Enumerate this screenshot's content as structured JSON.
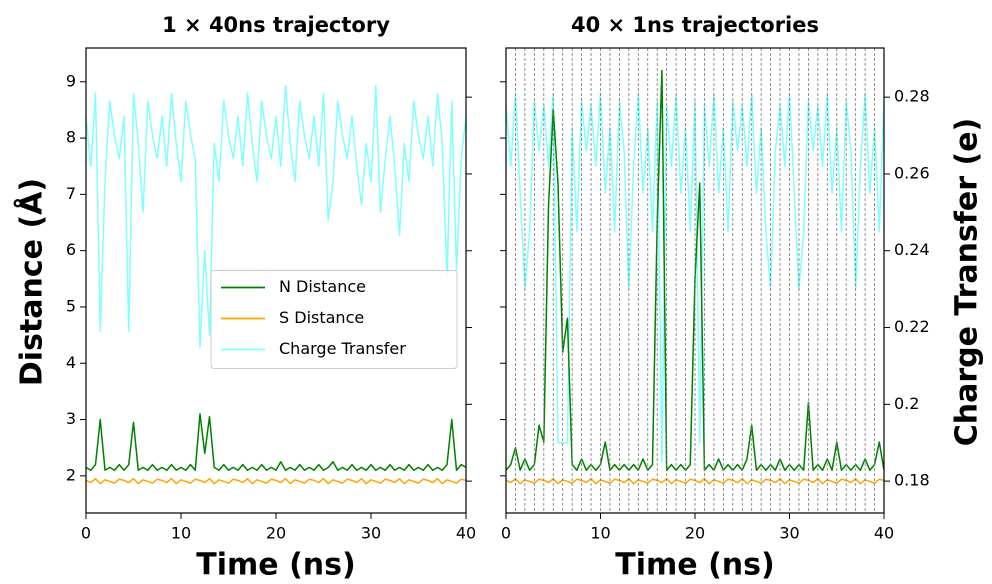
{
  "chart_data": [
    {
      "type": "line",
      "title": "1 × 40ns trajectory",
      "xlabel": "Time (ns)",
      "ylabel": "Distance (Å)",
      "xlim": [
        0,
        40
      ],
      "xticks": [
        0,
        10,
        20,
        30,
        40
      ],
      "ylim": [
        1.34,
        9.6
      ],
      "yticks": [
        2,
        3,
        4,
        5,
        6,
        7,
        8,
        9
      ],
      "y2lim": [
        0.1717,
        0.2928
      ],
      "legend": "center right",
      "x": [
        0,
        0.5,
        1,
        1.5,
        2,
        2.5,
        3,
        3.5,
        4,
        4.5,
        5,
        5.5,
        6,
        6.5,
        7,
        7.5,
        8,
        8.5,
        9,
        9.5,
        10,
        10.5,
        11,
        11.5,
        12,
        12.5,
        13,
        13.5,
        14,
        14.5,
        15,
        15.5,
        16,
        16.5,
        17,
        17.5,
        18,
        18.5,
        19,
        19.5,
        20,
        20.5,
        21,
        21.5,
        22,
        22.5,
        23,
        23.5,
        24,
        24.5,
        25,
        25.5,
        26,
        26.5,
        27,
        27.5,
        28,
        28.5,
        29,
        29.5,
        30,
        30.5,
        31,
        31.5,
        32,
        32.5,
        33,
        33.5,
        34,
        34.5,
        35,
        35.5,
        36,
        36.5,
        37,
        37.5,
        38,
        38.5,
        39,
        39.5,
        40
      ],
      "series": [
        {
          "name": "N Distance",
          "color": "#008000",
          "values": [
            2.15,
            2.1,
            2.2,
            3.0,
            2.1,
            2.15,
            2.1,
            2.2,
            2.1,
            2.2,
            2.95,
            2.1,
            2.15,
            2.1,
            2.2,
            2.1,
            2.15,
            2.1,
            2.2,
            2.1,
            2.15,
            2.1,
            2.2,
            2.1,
            3.1,
            2.4,
            3.05,
            2.15,
            2.1,
            2.2,
            2.1,
            2.15,
            2.1,
            2.2,
            2.1,
            2.15,
            2.1,
            2.2,
            2.1,
            2.15,
            2.1,
            2.25,
            2.1,
            2.15,
            2.1,
            2.2,
            2.1,
            2.15,
            2.1,
            2.2,
            2.1,
            2.15,
            2.25,
            2.1,
            2.15,
            2.1,
            2.2,
            2.1,
            2.15,
            2.1,
            2.2,
            2.1,
            2.15,
            2.1,
            2.2,
            2.1,
            2.15,
            2.1,
            2.2,
            2.1,
            2.15,
            2.1,
            2.2,
            2.1,
            2.15,
            2.1,
            2.2,
            3.0,
            2.1,
            2.2,
            2.15
          ]
        },
        {
          "name": "S Distance",
          "color": "#ffa500",
          "values": [
            1.92,
            1.88,
            1.95,
            1.86,
            1.93,
            1.9,
            1.87,
            1.94,
            1.92,
            1.88,
            1.95,
            1.86,
            1.93,
            1.9,
            1.87,
            1.94,
            1.92,
            1.88,
            1.95,
            1.86,
            1.93,
            1.9,
            1.87,
            1.94,
            1.92,
            1.88,
            1.95,
            1.86,
            1.93,
            1.9,
            1.87,
            1.94,
            1.92,
            1.88,
            1.95,
            1.86,
            1.93,
            1.9,
            1.87,
            1.94,
            1.92,
            1.88,
            1.95,
            1.86,
            1.93,
            1.9,
            1.87,
            1.94,
            1.92,
            1.88,
            1.95,
            1.86,
            1.93,
            1.9,
            1.87,
            1.94,
            1.92,
            1.88,
            1.95,
            1.86,
            1.93,
            1.9,
            1.87,
            1.94,
            1.92,
            1.88,
            1.95,
            1.86,
            1.93,
            1.9,
            1.87,
            1.94,
            1.92,
            1.88,
            1.95,
            1.86,
            1.93,
            1.9,
            1.87,
            1.94,
            1.92
          ]
        },
        {
          "name": "Charge Transfer",
          "color": "#80ffff",
          "axis": "y2",
          "values": [
            0.275,
            0.262,
            0.281,
            0.219,
            0.258,
            0.279,
            0.27,
            0.264,
            0.275,
            0.219,
            0.281,
            0.268,
            0.25,
            0.279,
            0.27,
            0.264,
            0.275,
            0.262,
            0.281,
            0.268,
            0.258,
            0.279,
            0.27,
            0.264,
            0.215,
            0.24,
            0.218,
            0.268,
            0.258,
            0.279,
            0.27,
            0.264,
            0.275,
            0.262,
            0.281,
            0.268,
            0.258,
            0.279,
            0.27,
            0.264,
            0.275,
            0.262,
            0.283,
            0.268,
            0.258,
            0.279,
            0.27,
            0.264,
            0.275,
            0.262,
            0.281,
            0.248,
            0.258,
            0.279,
            0.27,
            0.264,
            0.275,
            0.262,
            0.252,
            0.268,
            0.258,
            0.283,
            0.25,
            0.264,
            0.275,
            0.262,
            0.244,
            0.268,
            0.258,
            0.279,
            0.27,
            0.264,
            0.275,
            0.262,
            0.281,
            0.268,
            0.233,
            0.279,
            0.235,
            0.264,
            0.275
          ]
        }
      ]
    },
    {
      "type": "line",
      "title": "40 × 1ns trajectories",
      "xlabel": "Time (ns)",
      "y2label": "Charge Transfer (e)",
      "xlim": [
        0,
        40
      ],
      "xticks": [
        0,
        10,
        20,
        30,
        40
      ],
      "ylim": [
        1.34,
        9.6
      ],
      "y2lim": [
        0.1717,
        0.2928
      ],
      "y2ticks": [
        0.18,
        0.2,
        0.22,
        0.24,
        0.26,
        0.28
      ],
      "vlines": [
        1,
        2,
        3,
        4,
        5,
        6,
        7,
        8,
        9,
        10,
        11,
        12,
        13,
        14,
        15,
        16,
        17,
        18,
        19,
        20,
        21,
        22,
        23,
        24,
        25,
        26,
        27,
        28,
        29,
        30,
        31,
        32,
        33,
        34,
        35,
        36,
        37,
        38,
        39
      ],
      "x": [
        0,
        0.5,
        1,
        1.5,
        2,
        2.5,
        3,
        3.5,
        4,
        4.5,
        5,
        5.5,
        6,
        6.5,
        7,
        7.5,
        8,
        8.5,
        9,
        9.5,
        10,
        10.5,
        11,
        11.5,
        12,
        12.5,
        13,
        13.5,
        14,
        14.5,
        15,
        15.5,
        16,
        16.5,
        17,
        17.5,
        18,
        18.5,
        19,
        19.5,
        20,
        20.5,
        21,
        21.5,
        22,
        22.5,
        23,
        23.5,
        24,
        24.5,
        25,
        25.5,
        26,
        26.5,
        27,
        27.5,
        28,
        28.5,
        29,
        29.5,
        30,
        30.5,
        31,
        31.5,
        32,
        32.5,
        33,
        33.5,
        34,
        34.5,
        35,
        35.5,
        36,
        36.5,
        37,
        37.5,
        38,
        38.5,
        39,
        39.5,
        40
      ],
      "series": [
        {
          "name": "N Distance",
          "color": "#008000",
          "values": [
            2.1,
            2.2,
            2.5,
            2.1,
            2.3,
            2.1,
            2.2,
            2.9,
            2.6,
            6.8,
            8.5,
            7.2,
            4.2,
            4.8,
            2.2,
            2.1,
            2.3,
            2.1,
            2.2,
            2.1,
            2.2,
            2.6,
            2.1,
            2.2,
            2.1,
            2.2,
            2.1,
            2.2,
            2.1,
            2.3,
            2.1,
            2.2,
            6.5,
            9.2,
            2.1,
            2.2,
            2.1,
            2.2,
            2.1,
            2.2,
            5.5,
            7.2,
            2.1,
            2.2,
            2.1,
            2.3,
            2.1,
            2.2,
            2.1,
            2.2,
            2.1,
            2.3,
            2.9,
            2.1,
            2.2,
            2.1,
            2.2,
            2.1,
            2.3,
            2.1,
            2.2,
            2.1,
            2.2,
            2.1,
            3.3,
            2.1,
            2.2,
            2.1,
            2.3,
            2.1,
            2.6,
            2.1,
            2.2,
            2.1,
            2.2,
            2.1,
            2.3,
            2.1,
            2.2,
            2.6,
            2.1
          ]
        },
        {
          "name": "S Distance",
          "color": "#ffa500",
          "values": [
            1.92,
            1.88,
            1.95,
            1.86,
            1.93,
            1.9,
            1.87,
            1.94,
            1.92,
            1.88,
            1.95,
            1.86,
            1.93,
            1.9,
            1.87,
            1.94,
            1.92,
            1.88,
            1.95,
            1.86,
            1.93,
            1.9,
            1.87,
            1.94,
            1.92,
            1.88,
            1.95,
            1.86,
            1.93,
            1.9,
            1.87,
            1.94,
            1.92,
            1.88,
            1.95,
            1.86,
            1.93,
            1.9,
            1.87,
            1.94,
            1.92,
            1.88,
            1.95,
            1.86,
            1.93,
            1.9,
            1.87,
            1.94,
            1.92,
            1.88,
            1.95,
            1.86,
            1.93,
            1.9,
            1.87,
            1.94,
            1.92,
            1.88,
            1.95,
            1.86,
            1.93,
            1.9,
            1.87,
            1.94,
            1.92,
            1.88,
            1.95,
            1.86,
            1.93,
            1.9,
            1.87,
            1.94,
            1.92,
            1.88,
            1.95,
            1.86,
            1.93,
            1.9,
            1.87,
            1.94,
            1.92
          ]
        },
        {
          "name": "Charge Transfer",
          "color": "#80ffff",
          "axis": "y2",
          "values": [
            0.278,
            0.262,
            0.281,
            0.255,
            0.23,
            0.245,
            0.279,
            0.266,
            0.278,
            0.262,
            0.281,
            0.19,
            0.19,
            0.19,
            0.272,
            0.245,
            0.279,
            0.266,
            0.278,
            0.262,
            0.281,
            0.255,
            0.272,
            0.245,
            0.279,
            0.266,
            0.23,
            0.262,
            0.281,
            0.255,
            0.272,
            0.245,
            0.279,
            0.185,
            0.278,
            0.262,
            0.281,
            0.255,
            0.272,
            0.245,
            0.279,
            0.19,
            0.278,
            0.262,
            0.281,
            0.255,
            0.272,
            0.245,
            0.279,
            0.266,
            0.278,
            0.262,
            0.281,
            0.255,
            0.272,
            0.245,
            0.23,
            0.266,
            0.278,
            0.262,
            0.281,
            0.255,
            0.23,
            0.245,
            0.279,
            0.266,
            0.278,
            0.262,
            0.281,
            0.255,
            0.272,
            0.245,
            0.279,
            0.266,
            0.23,
            0.262,
            0.281,
            0.255,
            0.272,
            0.245,
            0.279
          ]
        }
      ]
    }
  ]
}
